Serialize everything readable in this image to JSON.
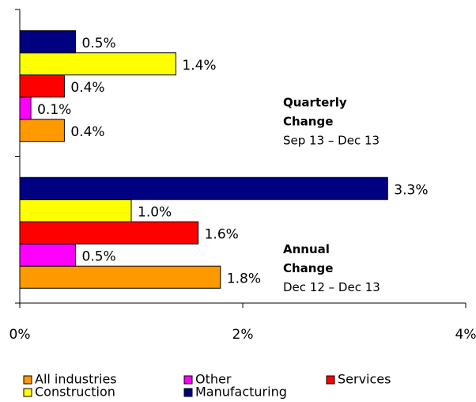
{
  "chart_data": {
    "type": "bar",
    "orientation": "horizontal",
    "categories": [
      null,
      null
    ],
    "annotations": [
      [
        "Quarterly",
        "Change",
        "Sep 13 – Dec 13"
      ],
      [
        "Annual",
        "Change",
        "Dec 12 – Dec 13"
      ]
    ],
    "series": [
      {
        "name": "All industries",
        "color": "#ff9900",
        "values": [
          0.4,
          1.8
        ],
        "value_labels": [
          "0.4%",
          "1.8%"
        ]
      },
      {
        "name": "Other",
        "color": "#ff00ff",
        "values": [
          0.1,
          0.5
        ],
        "value_labels": [
          "0.1%",
          "0.5%"
        ]
      },
      {
        "name": "Services",
        "color": "#ff0000",
        "values": [
          0.4,
          1.6
        ],
        "value_labels": [
          "0.4%",
          "1.6%"
        ]
      },
      {
        "name": "Construction",
        "color": "#ffff00",
        "values": [
          1.4,
          1.0
        ],
        "value_labels": [
          "1.4%",
          "1.0%"
        ]
      },
      {
        "name": "Manufacturing",
        "color": "#000080",
        "values": [
          0.5,
          3.3
        ],
        "value_labels": [
          "0.5%",
          "3.3%"
        ]
      }
    ],
    "xlim": [
      0,
      4
    ],
    "xticks": [
      {
        "value": 0,
        "label": "0%"
      },
      {
        "value": 2,
        "label": "2%"
      },
      {
        "value": 4,
        "label": "4%"
      }
    ]
  }
}
